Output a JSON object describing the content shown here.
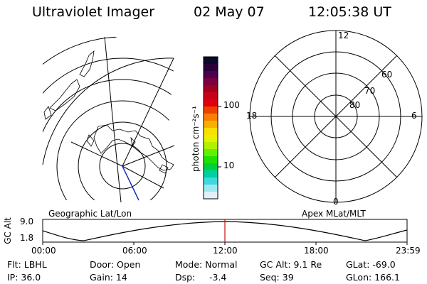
{
  "header": {
    "instrument": "Ultraviolet Imager",
    "date": "02 May 07",
    "time": "12:05:38 UT"
  },
  "left_map": {
    "label": "Geographic Lat/Lon"
  },
  "right_map": {
    "label": "Apex MLat/MLT",
    "mlt_labels": {
      "top": "12",
      "left": "18",
      "right": "6",
      "bottom": "0"
    },
    "lat_labels": [
      "60",
      "70",
      "80"
    ]
  },
  "colorbar": {
    "unit_label": "photon cm⁻²s⁻¹",
    "tick_labels": [
      "100",
      "10"
    ],
    "colors": [
      "#0a0a2a",
      "#2a0038",
      "#4a0050",
      "#7a0040",
      "#a00020",
      "#c80018",
      "#e00010",
      "#f04000",
      "#f88000",
      "#f8b000",
      "#f8e000",
      "#e8f000",
      "#b0f000",
      "#60f000",
      "#20e000",
      "#00d040",
      "#00d0a0",
      "#40d8e0",
      "#a0e8f0",
      "#e0f0f8"
    ]
  },
  "alt_plot": {
    "ylabel": "GC Alt",
    "ymax_label": "9.0",
    "ymin_label": "1.8",
    "x_ticks": [
      "00:00",
      "06:00",
      "12:00",
      "18:00",
      "23:59"
    ]
  },
  "info": {
    "filter": "Flt: LBHL",
    "door": "Door: Open",
    "mode": "Mode: Normal",
    "gc_alt": "GC Alt: 9.1 Re",
    "glat": "GLat: -69.0",
    "ip": "IP: 36.0",
    "gain": "Gain: 14",
    "dsp_label": "Dsp:",
    "dsp_value": "-3.4",
    "seq": "Seq: 39",
    "glon": "GLon: 166.1"
  }
}
